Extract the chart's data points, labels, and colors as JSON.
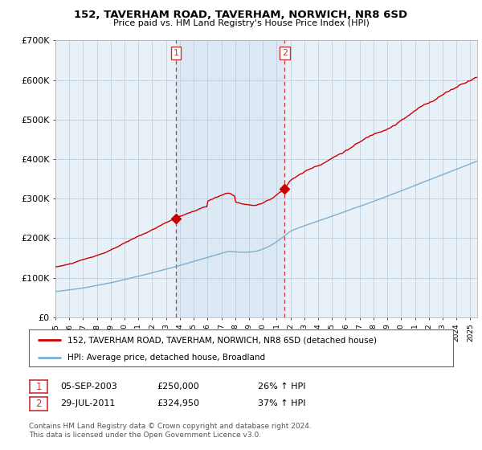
{
  "title": "152, TAVERHAM ROAD, TAVERHAM, NORWICH, NR8 6SD",
  "subtitle": "Price paid vs. HM Land Registry's House Price Index (HPI)",
  "legend_line1": "152, TAVERHAM ROAD, TAVERHAM, NORWICH, NR8 6SD (detached house)",
  "legend_line2": "HPI: Average price, detached house, Broadland",
  "footer": "Contains HM Land Registry data © Crown copyright and database right 2024.\nThis data is licensed under the Open Government Licence v3.0.",
  "sale1_date": "05-SEP-2003",
  "sale1_price": "£250,000",
  "sale1_hpi": "26% ↑ HPI",
  "sale1_year": 2003.71,
  "sale1_value": 250000,
  "sale2_date": "29-JUL-2011",
  "sale2_price": "£324,950",
  "sale2_hpi": "37% ↑ HPI",
  "sale2_year": 2011.58,
  "sale2_value": 324950,
  "red_color": "#cc0000",
  "blue_color": "#7ab0d4",
  "shade_color": "#dce9f5",
  "bg_color": "#e8f0f8",
  "plot_bg": "#ffffff",
  "vline_color": "#cc3333",
  "ylim": [
    0,
    700000
  ],
  "xlim_start": 1995.0,
  "xlim_end": 2025.5,
  "yticks": [
    0,
    100000,
    200000,
    300000,
    400000,
    500000,
    600000,
    700000
  ],
  "ytick_labels": [
    "£0",
    "£100K",
    "£200K",
    "£300K",
    "£400K",
    "£500K",
    "£600K",
    "£700K"
  ]
}
